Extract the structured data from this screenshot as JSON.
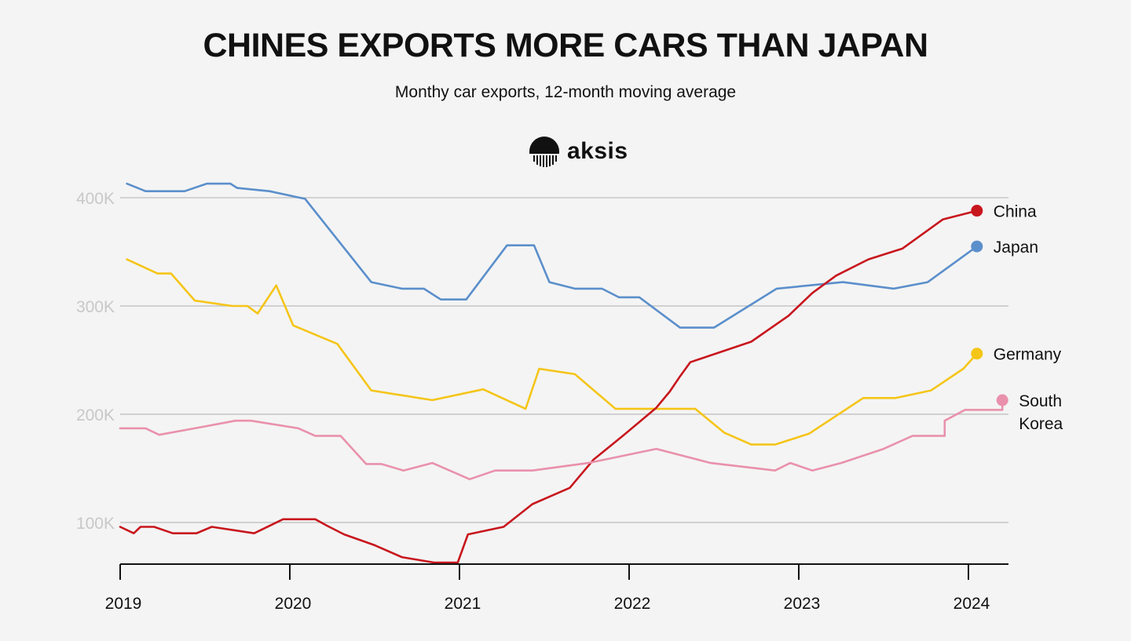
{
  "header": {
    "title": "CHINES EXPORTS MORE CARS THAN JAPAN",
    "subtitle": "Monthy car exports, 12-month moving average",
    "brand": "aksis"
  },
  "colors": {
    "background": "#f4f4f4",
    "grid": "#c8c8c8",
    "axis": "#111111"
  },
  "chart_data": {
    "type": "line",
    "title": "CHINES EXPORTS MORE CARS THAN JAPAN",
    "subtitle": "Monthy car exports, 12-month moving average",
    "xlabel": "",
    "ylabel": "",
    "x_unit": "year (decimal)",
    "xlim": [
      2019,
      2024.22
    ],
    "ylim": [
      63000,
      400000
    ],
    "grid": true,
    "legend": "right-side end labels",
    "y_ticks": [
      {
        "value": 100000,
        "label": "100K"
      },
      {
        "value": 200000,
        "label": "200K"
      },
      {
        "value": 300000,
        "label": "300K"
      },
      {
        "value": 400000,
        "label": "400K"
      }
    ],
    "x_ticks": [
      {
        "value": 2019,
        "label": "2019"
      },
      {
        "value": 2020,
        "label": "2020"
      },
      {
        "value": 2021,
        "label": "2021"
      },
      {
        "value": 2022,
        "label": "2022"
      },
      {
        "value": 2023,
        "label": "2023"
      },
      {
        "value": 2024,
        "label": "2024"
      }
    ],
    "series": [
      {
        "name": "Japan",
        "label_lines": [
          "Japan"
        ],
        "color": "#5b8fcb",
        "points": [
          [
            2019.04,
            413000
          ],
          [
            2019.15,
            406000
          ],
          [
            2019.38,
            406000
          ],
          [
            2019.51,
            413000
          ],
          [
            2019.65,
            413000
          ],
          [
            2019.69,
            409000
          ],
          [
            2019.88,
            406000
          ],
          [
            2020.09,
            399000
          ],
          [
            2020.48,
            322000
          ],
          [
            2020.66,
            316000
          ],
          [
            2020.79,
            316000
          ],
          [
            2020.89,
            306000
          ],
          [
            2021.04,
            306000
          ],
          [
            2021.28,
            356000
          ],
          [
            2021.44,
            356000
          ],
          [
            2021.53,
            322000
          ],
          [
            2021.68,
            316000
          ],
          [
            2021.84,
            316000
          ],
          [
            2021.94,
            308000
          ],
          [
            2022.06,
            308000
          ],
          [
            2022.3,
            280000
          ],
          [
            2022.5,
            280000
          ],
          [
            2022.87,
            316000
          ],
          [
            2023.26,
            322000
          ],
          [
            2023.56,
            316000
          ],
          [
            2023.76,
            322000
          ],
          [
            2024.05,
            355000
          ]
        ]
      },
      {
        "name": "Germany",
        "label_lines": [
          "Germany"
        ],
        "color": "#f5c518",
        "points": [
          [
            2019.04,
            343000
          ],
          [
            2019.22,
            330000
          ],
          [
            2019.3,
            330000
          ],
          [
            2019.44,
            305000
          ],
          [
            2019.66,
            300000
          ],
          [
            2019.75,
            300000
          ],
          [
            2019.81,
            293000
          ],
          [
            2019.92,
            319000
          ],
          [
            2020.02,
            282000
          ],
          [
            2020.28,
            265000
          ],
          [
            2020.48,
            222000
          ],
          [
            2020.84,
            213000
          ],
          [
            2021.14,
            223000
          ],
          [
            2021.39,
            205000
          ],
          [
            2021.47,
            242000
          ],
          [
            2021.68,
            237000
          ],
          [
            2021.92,
            205000
          ],
          [
            2022.39,
            205000
          ],
          [
            2022.56,
            183000
          ],
          [
            2022.72,
            172000
          ],
          [
            2022.86,
            172000
          ],
          [
            2023.06,
            182000
          ],
          [
            2023.38,
            215000
          ],
          [
            2023.57,
            215000
          ],
          [
            2023.78,
            222000
          ],
          [
            2023.97,
            242000
          ],
          [
            2024.05,
            256000
          ]
        ]
      },
      {
        "name": "China",
        "label_lines": [
          "China"
        ],
        "color": "#c8161d",
        "points": [
          [
            2019.0,
            96000
          ],
          [
            2019.08,
            90000
          ],
          [
            2019.12,
            96000
          ],
          [
            2019.2,
            96000
          ],
          [
            2019.31,
            90000
          ],
          [
            2019.45,
            90000
          ],
          [
            2019.54,
            96000
          ],
          [
            2019.79,
            90000
          ],
          [
            2019.96,
            103000
          ],
          [
            2020.15,
            103000
          ],
          [
            2020.22,
            97000
          ],
          [
            2020.32,
            89000
          ],
          [
            2020.5,
            79000
          ],
          [
            2020.66,
            68000
          ],
          [
            2020.85,
            63000
          ],
          [
            2020.99,
            63000
          ],
          [
            2021.05,
            89000
          ],
          [
            2021.26,
            96000
          ],
          [
            2021.43,
            117000
          ],
          [
            2021.65,
            132000
          ],
          [
            2021.79,
            158000
          ],
          [
            2021.97,
            181000
          ],
          [
            2022.16,
            206000
          ],
          [
            2022.24,
            221000
          ],
          [
            2022.3,
            235000
          ],
          [
            2022.36,
            248000
          ],
          [
            2022.72,
            267000
          ],
          [
            2022.94,
            291000
          ],
          [
            2023.08,
            312000
          ],
          [
            2023.22,
            328000
          ],
          [
            2023.41,
            343000
          ],
          [
            2023.61,
            353000
          ],
          [
            2023.85,
            380000
          ],
          [
            2024.05,
            388000
          ]
        ]
      },
      {
        "name": "South Korea",
        "label_lines": [
          "South",
          "Korea"
        ],
        "color": "#e991ac",
        "points": [
          [
            2019.0,
            187000
          ],
          [
            2019.15,
            187000
          ],
          [
            2019.23,
            181000
          ],
          [
            2019.44,
            187000
          ],
          [
            2019.68,
            194000
          ],
          [
            2019.77,
            194000
          ],
          [
            2020.05,
            187000
          ],
          [
            2020.15,
            180000
          ],
          [
            2020.3,
            180000
          ],
          [
            2020.45,
            154000
          ],
          [
            2020.54,
            154000
          ],
          [
            2020.67,
            148000
          ],
          [
            2020.84,
            155000
          ],
          [
            2021.06,
            140000
          ],
          [
            2021.21,
            148000
          ],
          [
            2021.43,
            148000
          ],
          [
            2021.76,
            155000
          ],
          [
            2022.16,
            168000
          ],
          [
            2022.48,
            155000
          ],
          [
            2022.86,
            148000
          ],
          [
            2022.95,
            155000
          ],
          [
            2023.08,
            148000
          ],
          [
            2023.25,
            155000
          ],
          [
            2023.5,
            168000
          ],
          [
            2023.67,
            180000
          ],
          [
            2023.86,
            180000
          ],
          [
            2023.86,
            194000
          ],
          [
            2023.98,
            204000
          ],
          [
            2024.2,
            204000
          ],
          [
            2024.2,
            213000
          ]
        ]
      }
    ]
  }
}
